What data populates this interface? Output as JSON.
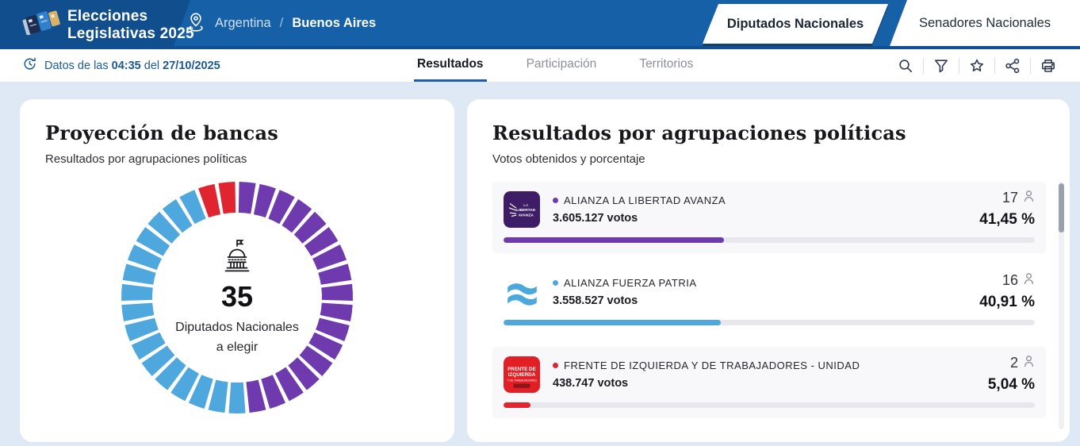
{
  "header": {
    "logo_line1": "Elecciones",
    "logo_line2": "Legislativas 2025",
    "breadcrumb": {
      "country": "Argentina",
      "separator": "/",
      "district": "Buenos Aires"
    },
    "chamber_tabs": [
      {
        "label": "Diputados Nacionales",
        "active": true
      },
      {
        "label": "Senadores Nacionales",
        "active": false
      }
    ]
  },
  "toolbar": {
    "update_prefix": "Datos de las",
    "update_time": "04:35",
    "update_connector": "del",
    "update_date": "27/10/2025",
    "tabs": [
      {
        "label": "Resultados",
        "active": true
      },
      {
        "label": "Participación",
        "active": false
      },
      {
        "label": "Territorios",
        "active": false
      }
    ],
    "action_icons": [
      "search-icon",
      "filter-icon",
      "favorite-star-icon",
      "share-icon",
      "print-icon"
    ]
  },
  "seat_projection_card": {
    "title": "Proyección de bancas",
    "subtitle": "Resultados por agrupaciones políticas",
    "total_seats": "35",
    "center_caption_line1": "Diputados Nacionales",
    "center_caption_line2": "a elegir"
  },
  "results_card": {
    "title": "Resultados por agrupaciones políticas",
    "subtitle": "Votos obtenidos y porcentaje",
    "parties": [
      {
        "name": "ALIANZA LA LIBERTAD AVANZA",
        "votes": "3.605.127 votos",
        "seats": "17",
        "percent": "41,45 %",
        "percent_value": 41.45,
        "color": "#6f3aad",
        "logo": "lla"
      },
      {
        "name": "ALIANZA FUERZA PATRIA",
        "votes": "3.558.527 votos",
        "seats": "16",
        "percent": "40,91 %",
        "percent_value": 40.91,
        "color": "#4fa8dd",
        "logo": "fp"
      },
      {
        "name": "FRENTE DE IZQUIERDA Y DE TRABAJADORES - UNIDAD",
        "votes": "438.747 votos",
        "seats": "2",
        "percent": "5,04 %",
        "percent_value": 5.04,
        "color": "#e02531",
        "logo": "fit"
      }
    ]
  },
  "chart_data": [
    {
      "type": "pie",
      "subtype": "seat-projection-donut",
      "title": "Proyección de bancas",
      "categories": [
        "Alianza La Libertad Avanza",
        "Alianza Fuerza Patria",
        "Frente de Izquierda y de Trabajadores - Unidad"
      ],
      "values": [
        17,
        16,
        2
      ],
      "colors": [
        "#6f3aad",
        "#4fa8dd",
        "#e02531"
      ],
      "total": 35,
      "center_text": "35",
      "center_caption": "Diputados Nacionales a elegir"
    },
    {
      "type": "bar",
      "subtype": "vote-share-bars",
      "title": "Resultados por agrupaciones políticas",
      "categories": [
        "Alianza La Libertad Avanza",
        "Alianza Fuerza Patria",
        "Frente de Izquierda y de Trabajadores - Unidad"
      ],
      "values": [
        41.45,
        40.91,
        5.04
      ],
      "colors": [
        "#6f3aad",
        "#4fa8dd",
        "#e02531"
      ],
      "xlim": [
        0,
        100
      ]
    }
  ],
  "colors": {
    "header_blue": "#1560a6",
    "header_dark_blue": "#114e8e",
    "page_bg": "#dfe9f6",
    "accent_purple": "#6f3aad",
    "accent_lightblue": "#4fa8dd",
    "accent_red": "#e02531"
  }
}
